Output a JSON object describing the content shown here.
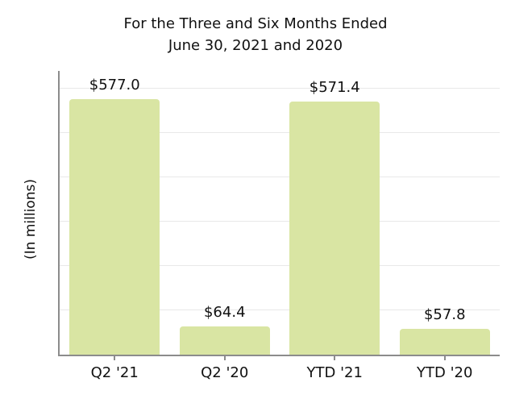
{
  "title": "For the Three and Six Months Ended\nJune 30, 2021 and 2020",
  "chart_data": {
    "type": "bar",
    "title": "For the Three and Six Months Ended June 30, 2021 and 2020",
    "categories": [
      "Q2 '21",
      "Q2 '20",
      "YTD '21",
      "YTD '20"
    ],
    "values": [
      577.0,
      64.4,
      571.4,
      57.8
    ],
    "value_labels": [
      "$577.0",
      "$64.4",
      "$571.4",
      "$57.8"
    ],
    "xlabel": "",
    "ylabel": "(In millions)",
    "ylim": [
      0,
      640
    ],
    "grid": "horizontal",
    "gridline_step": 100,
    "legend": "none",
    "bar_color": "#d9e5a3",
    "axis_color": "#8c8c8c",
    "gridline_color": "#e8e8e8"
  }
}
